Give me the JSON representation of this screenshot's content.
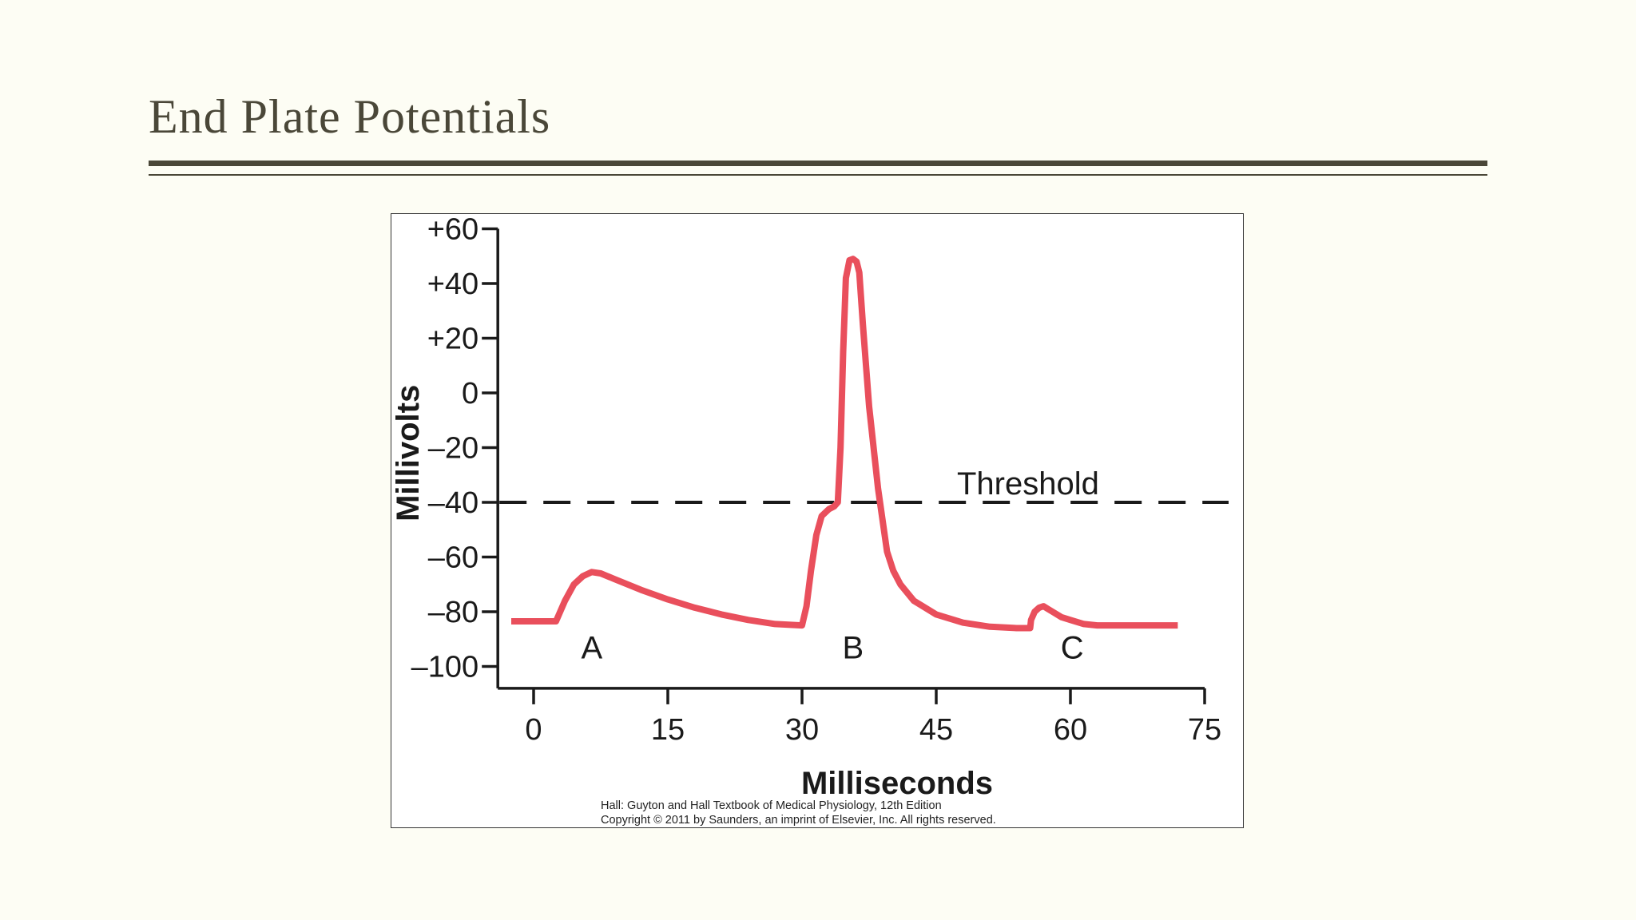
{
  "slide": {
    "title": "End Plate Potentials"
  },
  "credit": {
    "line1": "Hall: Guyton and Hall Textbook of Medical Physiology, 12th Edition",
    "line2": "Copyright © 2011 by Saunders, an imprint of Elsevier, Inc. All rights reserved."
  },
  "colors": {
    "trace": "#e94f5c",
    "axis": "#1a1a1a",
    "title_text": "#4a4738",
    "background": "#fdfdf4"
  },
  "chart_data": {
    "type": "line",
    "title": "",
    "xlabel": "Milliseconds",
    "ylabel": "Millivolts",
    "xlim": [
      -4,
      75
    ],
    "ylim": [
      -108,
      60
    ],
    "x_ticks": [
      0,
      15,
      30,
      45,
      60,
      75
    ],
    "y_ticks": [
      60,
      40,
      20,
      0,
      -20,
      -40,
      -60,
      -80,
      -100
    ],
    "y_tick_labels": [
      "+60",
      "+40",
      "+20",
      "0",
      "–20",
      "–40",
      "–60",
      "–80",
      "–100"
    ],
    "grid": false,
    "legend": "none",
    "threshold": {
      "y": -40,
      "label": "Threshold"
    },
    "annotations": [
      {
        "text": "A",
        "x": 6.5,
        "y": -93
      },
      {
        "text": "B",
        "x": 35.7,
        "y": -93
      },
      {
        "text": "C",
        "x": 60.2,
        "y": -93
      }
    ],
    "series": [
      {
        "x": [
          -2.5,
          2.5,
          3.5,
          4.5,
          5.5,
          6.5,
          7.5,
          9,
          12,
          15,
          18,
          21,
          24,
          27,
          30,
          30.5,
          31,
          31.6,
          32.2,
          33,
          33.6,
          34,
          34.3,
          34.6,
          34.9,
          35.3,
          35.7,
          36.1,
          36.4,
          36.8,
          37.5,
          38.5,
          39.5,
          40.2,
          41,
          42.5,
          45,
          48,
          51,
          54,
          55.5,
          55.6,
          56,
          56.5,
          57,
          57.5,
          58,
          59,
          60,
          61.5,
          63,
          66,
          70,
          72
        ],
        "y": [
          -83.5,
          -83.5,
          -76,
          -70,
          -67,
          -65.5,
          -66,
          -68,
          -72,
          -75.5,
          -78.5,
          -81,
          -83,
          -84.5,
          -85,
          -78,
          -65,
          -52,
          -45,
          -42.5,
          -41.5,
          -40,
          -20,
          15,
          42,
          48.5,
          49,
          48,
          44,
          25,
          -5,
          -35,
          -58,
          -65,
          -70,
          -76,
          -81,
          -84,
          -85.5,
          -86,
          -86,
          -83,
          -80,
          -78.5,
          -78,
          -79,
          -80,
          -82,
          -83,
          -84.5,
          -85,
          -85,
          -85,
          -85
        ]
      }
    ]
  }
}
